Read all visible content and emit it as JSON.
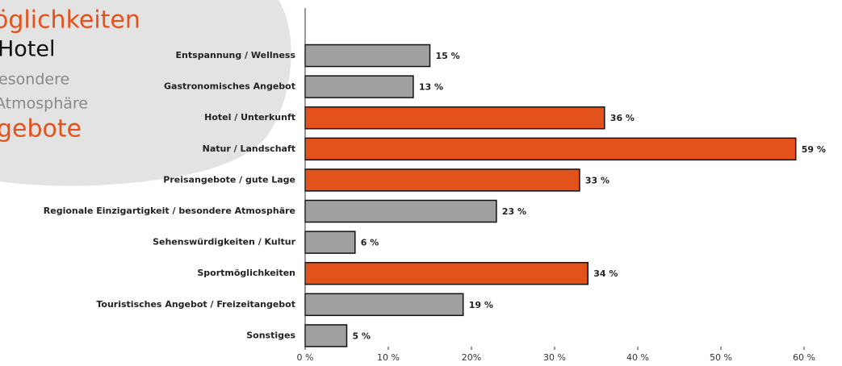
{
  "background_words": [
    "öglichkeiten",
    "Hotel",
    "besondere",
    "Atmosphäre",
    "gebote"
  ],
  "chart_data": {
    "type": "hbar",
    "categories": [
      "Entspannung / Wellness",
      "Gastronomisches Angebot",
      "Hotel / Unterkunft",
      "Natur / Landschaft",
      "Preisangebote / gute Lage",
      "Regionale Einzigartigkeit / besondere Atmosphäre",
      "Sehenswürdigkeiten / Kultur",
      "Sportmöglichkeiten",
      "Touristisches Angebot / Freizeitangebot",
      "Sonstiges"
    ],
    "values": [
      15,
      13,
      36,
      59,
      33,
      23,
      6,
      34,
      19,
      5
    ],
    "value_labels": [
      "15 %",
      "13 %",
      "36 %",
      "59 %",
      "33 %",
      "23 %",
      "6 %",
      "34 %",
      "19 %",
      "5 %"
    ],
    "colors": [
      "#a0a0a0",
      "#a0a0a0",
      "#e4521b",
      "#e4521b",
      "#e4521b",
      "#a0a0a0",
      "#a0a0a0",
      "#e4521b",
      "#a0a0a0",
      "#a0a0a0"
    ],
    "xlim": [
      0,
      60
    ],
    "xticks": [
      {
        "value": 0,
        "label": "0 %"
      },
      {
        "value": 10,
        "label": "10 %"
      },
      {
        "value": 20,
        "label": "20%"
      },
      {
        "value": 30,
        "label": "30 %"
      },
      {
        "value": 40,
        "label": "40 %"
      },
      {
        "value": 50,
        "label": "50 %"
      },
      {
        "value": 60,
        "label": "60 %"
      }
    ]
  }
}
